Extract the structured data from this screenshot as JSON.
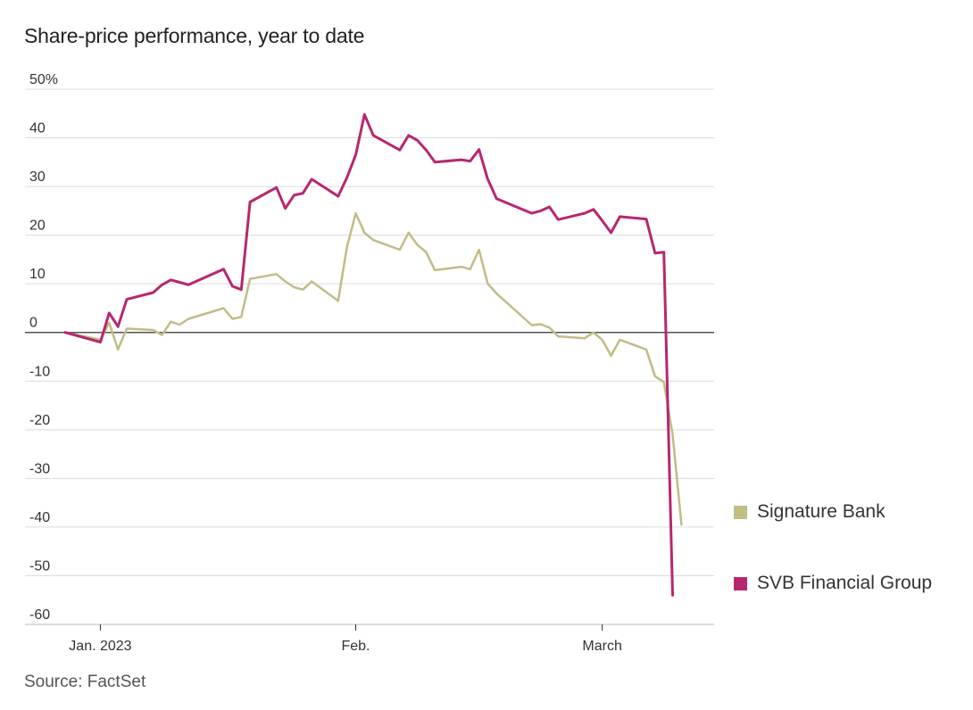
{
  "chart_data": {
    "type": "line",
    "title": "Share-price performance, year to date",
    "source": "Source: FactSet",
    "xlabel": "",
    "ylabel": "",
    "ylim": [
      -60,
      50
    ],
    "yticks": [
      50,
      40,
      30,
      20,
      10,
      0,
      -10,
      -20,
      -30,
      -40,
      -50,
      -60
    ],
    "ytick_labels": [
      "50%",
      "40",
      "30",
      "20",
      "10",
      "0",
      "-10",
      "-20",
      "-30",
      "-40",
      "-50",
      "-60"
    ],
    "xlim": [
      "2022-12-30",
      "2023-03-13"
    ],
    "xticks": [
      {
        "date": "2023-01-03",
        "label": "Jan. 2023"
      },
      {
        "date": "2023-02-01",
        "label": "Feb."
      },
      {
        "date": "2023-03-01",
        "label": "March"
      }
    ],
    "grid": true,
    "legend_position": "right",
    "series": [
      {
        "name": "Signature Bank",
        "color": "#c2bc85",
        "points": [
          [
            "2022-12-30",
            0
          ],
          [
            "2023-01-03",
            -1.5
          ],
          [
            "2023-01-04",
            2
          ],
          [
            "2023-01-05",
            -3.5
          ],
          [
            "2023-01-06",
            0.8
          ],
          [
            "2023-01-09",
            0.5
          ],
          [
            "2023-01-10",
            -0.5
          ],
          [
            "2023-01-11",
            2.2
          ],
          [
            "2023-01-12",
            1.6
          ],
          [
            "2023-01-13",
            2.8
          ],
          [
            "2023-01-17",
            5
          ],
          [
            "2023-01-18",
            2.8
          ],
          [
            "2023-01-19",
            3.2
          ],
          [
            "2023-01-20",
            11
          ],
          [
            "2023-01-23",
            12
          ],
          [
            "2023-01-24",
            10.5
          ],
          [
            "2023-01-25",
            9.3
          ],
          [
            "2023-01-26",
            8.8
          ],
          [
            "2023-01-27",
            10.5
          ],
          [
            "2023-01-30",
            6.5
          ],
          [
            "2023-01-31",
            17.5
          ],
          [
            "2023-02-01",
            24.5
          ],
          [
            "2023-02-02",
            20.5
          ],
          [
            "2023-02-03",
            19
          ],
          [
            "2023-02-06",
            17
          ],
          [
            "2023-02-07",
            20.5
          ],
          [
            "2023-02-08",
            18
          ],
          [
            "2023-02-09",
            16.5
          ],
          [
            "2023-02-10",
            12.8
          ],
          [
            "2023-02-13",
            13.5
          ],
          [
            "2023-02-14",
            13
          ],
          [
            "2023-02-15",
            17
          ],
          [
            "2023-02-16",
            10
          ],
          [
            "2023-02-17",
            8
          ],
          [
            "2023-02-21",
            1.5
          ],
          [
            "2023-02-22",
            1.7
          ],
          [
            "2023-02-23",
            1
          ],
          [
            "2023-02-24",
            -0.8
          ],
          [
            "2023-02-27",
            -1.2
          ],
          [
            "2023-02-28",
            0
          ],
          [
            "2023-03-01",
            -1.5
          ],
          [
            "2023-03-02",
            -4.8
          ],
          [
            "2023-03-03",
            -1.5
          ],
          [
            "2023-03-06",
            -3.5
          ],
          [
            "2023-03-07",
            -9
          ],
          [
            "2023-03-08",
            -10.2
          ],
          [
            "2023-03-09",
            -21
          ],
          [
            "2023-03-10",
            -39.5
          ]
        ]
      },
      {
        "name": "SVB Financial Group",
        "color": "#b7276f",
        "points": [
          [
            "2022-12-30",
            0
          ],
          [
            "2023-01-03",
            -2
          ],
          [
            "2023-01-04",
            4
          ],
          [
            "2023-01-05",
            1.2
          ],
          [
            "2023-01-06",
            6.8
          ],
          [
            "2023-01-09",
            8.2
          ],
          [
            "2023-01-10",
            9.8
          ],
          [
            "2023-01-11",
            10.8
          ],
          [
            "2023-01-12",
            10.3
          ],
          [
            "2023-01-13",
            9.8
          ],
          [
            "2023-01-17",
            13
          ],
          [
            "2023-01-18",
            9.5
          ],
          [
            "2023-01-19",
            8.8
          ],
          [
            "2023-01-20",
            26.8
          ],
          [
            "2023-01-23",
            29.8
          ],
          [
            "2023-01-24",
            25.5
          ],
          [
            "2023-01-25",
            28.2
          ],
          [
            "2023-01-26",
            28.6
          ],
          [
            "2023-01-27",
            31.5
          ],
          [
            "2023-01-30",
            28
          ],
          [
            "2023-01-31",
            31.8
          ],
          [
            "2023-02-01",
            36.5
          ],
          [
            "2023-02-02",
            44.8
          ],
          [
            "2023-02-03",
            40.5
          ],
          [
            "2023-02-06",
            37.5
          ],
          [
            "2023-02-07",
            40.5
          ],
          [
            "2023-02-08",
            39.5
          ],
          [
            "2023-02-09",
            37.5
          ],
          [
            "2023-02-10",
            35
          ],
          [
            "2023-02-13",
            35.5
          ],
          [
            "2023-02-14",
            35.2
          ],
          [
            "2023-02-15",
            37.6
          ],
          [
            "2023-02-16",
            31.5
          ],
          [
            "2023-02-17",
            27.5
          ],
          [
            "2023-02-21",
            24.5
          ],
          [
            "2023-02-22",
            25
          ],
          [
            "2023-02-23",
            25.8
          ],
          [
            "2023-02-24",
            23.2
          ],
          [
            "2023-02-27",
            24.5
          ],
          [
            "2023-02-28",
            25.3
          ],
          [
            "2023-03-01",
            23
          ],
          [
            "2023-03-02",
            20.5
          ],
          [
            "2023-03-03",
            23.8
          ],
          [
            "2023-03-06",
            23.3
          ],
          [
            "2023-03-07",
            16.3
          ],
          [
            "2023-03-08",
            16.5
          ],
          [
            "2023-03-09",
            -54
          ]
        ]
      }
    ]
  }
}
